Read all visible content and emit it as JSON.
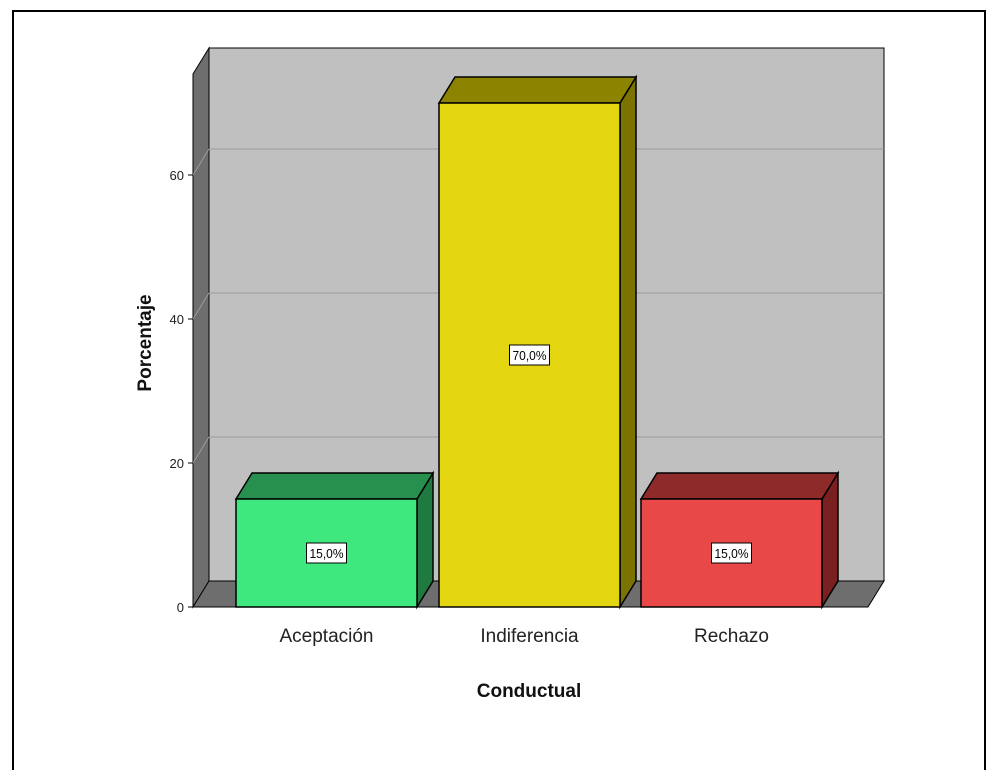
{
  "chart_data": {
    "type": "bar",
    "categories": [
      "Aceptación",
      "Indiferencia",
      "Rechazo"
    ],
    "values": [
      15.0,
      70.0,
      15.0
    ],
    "data_labels": [
      "15,0%",
      "70,0%",
      "15,0%"
    ],
    "colors": [
      {
        "front": "#3fe87e",
        "top": "#27904e",
        "side": "#1f7a40"
      },
      {
        "front": "#e3d510",
        "top": "#8c8400",
        "side": "#7a7300"
      },
      {
        "front": "#e84848",
        "top": "#8f2a2a",
        "side": "#7a2020"
      }
    ],
    "xlabel": "Conductual",
    "ylabel": "Porcentaje",
    "yticks": [
      0,
      20,
      40,
      60
    ],
    "ylim": [
      0,
      70
    ],
    "grid": true,
    "plot_background": "#c0c0c0",
    "style": "3d"
  }
}
